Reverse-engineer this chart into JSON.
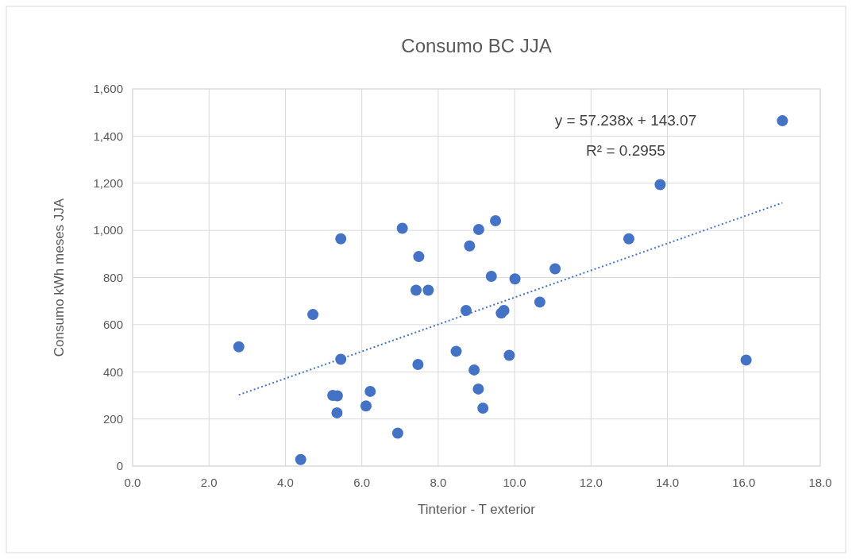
{
  "chart_data": {
    "type": "scatter",
    "title": "Consumo BC JJA",
    "xlabel": "Tinterior - T exterior",
    "ylabel": "Consumo kWh meses JJA",
    "annotations": [
      "y = 57.238x + 143.07",
      "R² = 0.2955"
    ],
    "xlim": [
      0,
      18
    ],
    "xticks": [
      {
        "value": 0,
        "label": "0.0"
      },
      {
        "value": 2,
        "label": "2.0"
      },
      {
        "value": 4,
        "label": "4.0"
      },
      {
        "value": 6,
        "label": "6.0"
      },
      {
        "value": 8,
        "label": "8.0"
      },
      {
        "value": 10,
        "label": "10.0"
      },
      {
        "value": 12,
        "label": "12.0"
      },
      {
        "value": 14,
        "label": "14.0"
      },
      {
        "value": 16,
        "label": "16.0"
      },
      {
        "value": 18,
        "label": "18.0"
      }
    ],
    "ylim": [
      0,
      1600
    ],
    "yticks": [
      0,
      200,
      400,
      600,
      800,
      {
        "value": 1000,
        "label": "1,000"
      },
      {
        "value": 1200,
        "label": "1,200"
      },
      {
        "value": 1400,
        "label": "1,400"
      },
      {
        "value": 1600,
        "label": "1,600"
      }
    ],
    "grid": true,
    "marker": "circle",
    "series": [
      {
        "color": "#4472c4",
        "x": [
          2.78,
          4.4,
          4.72,
          5.45,
          5.45,
          5.24,
          5.36,
          5.35,
          6.22,
          6.11,
          6.94,
          7.06,
          7.49,
          7.42,
          7.74,
          7.47,
          8.47,
          8.73,
          8.82,
          9.06,
          8.94,
          9.05,
          9.17,
          9.5,
          9.39,
          10.01,
          11.06,
          9.65,
          9.72,
          10.66,
          9.86,
          12.99,
          13.81,
          16.06,
          17.01
        ],
        "values": [
          506,
          28,
          643,
          964,
          453,
          300,
          298,
          226,
          317,
          255,
          140,
          1009,
          889,
          746,
          746,
          431,
          487,
          660,
          934,
          1004,
          408,
          327,
          246,
          1041,
          805,
          794,
          837,
          649,
          660,
          696,
          470,
          964,
          1194,
          450,
          1465
        ]
      },
      {
        "type": "line",
        "color": "#4472c4",
        "line_style": "dotted",
        "marker": "none",
        "x": [
          2.78,
          17.01
        ],
        "values": [
          302,
          1117
        ]
      }
    ]
  }
}
